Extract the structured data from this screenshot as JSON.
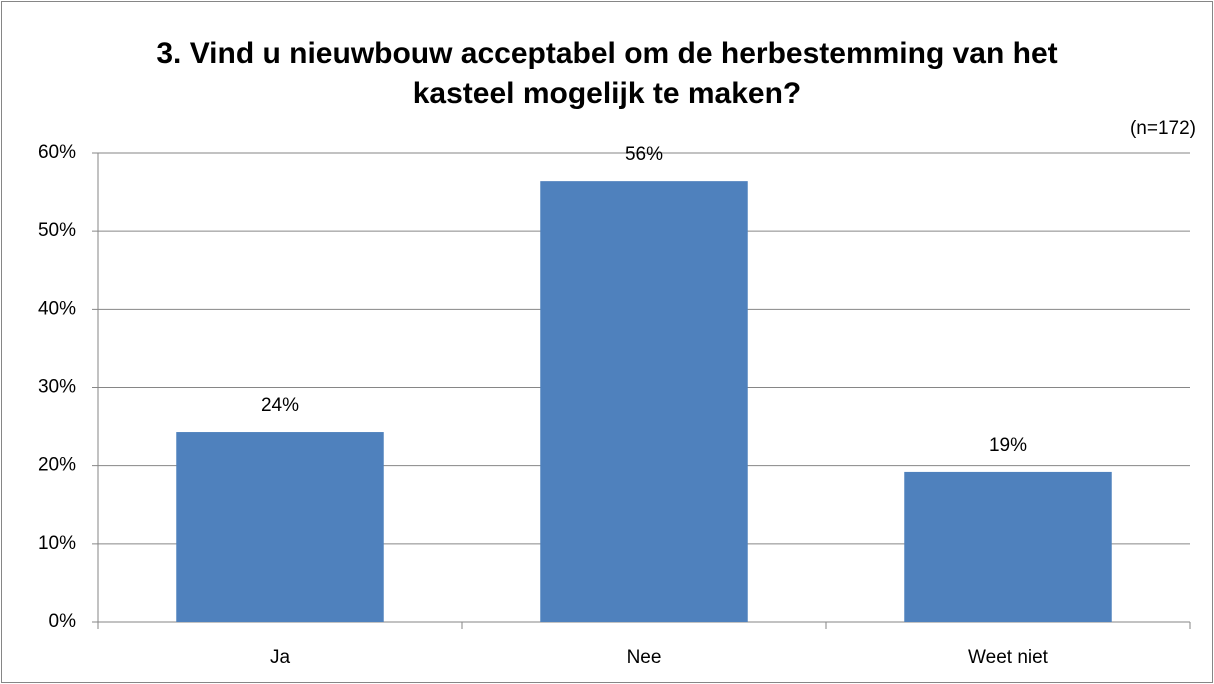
{
  "chart_data": {
    "type": "bar",
    "title": "3. Vind u nieuwbouw acceptabel om de herbestemming van het kasteel mogelijk te maken?",
    "annotation": "(n=172)",
    "categories": [
      "Ja",
      "Nee",
      "Weet niet"
    ],
    "values": [
      24.3,
      56.4,
      19.2
    ],
    "value_labels": [
      "24%",
      "56%",
      "19%"
    ],
    "color": "#4f81bd",
    "ylim": [
      0,
      60
    ],
    "yticks": [
      {
        "value": 0,
        "label": "0%"
      },
      {
        "value": 10,
        "label": "10%"
      },
      {
        "value": 20,
        "label": "20%"
      },
      {
        "value": 30,
        "label": "30%"
      },
      {
        "value": 40,
        "label": "40%"
      },
      {
        "value": 50,
        "label": "50%"
      },
      {
        "value": 60,
        "label": "60%"
      }
    ],
    "grid": true
  }
}
